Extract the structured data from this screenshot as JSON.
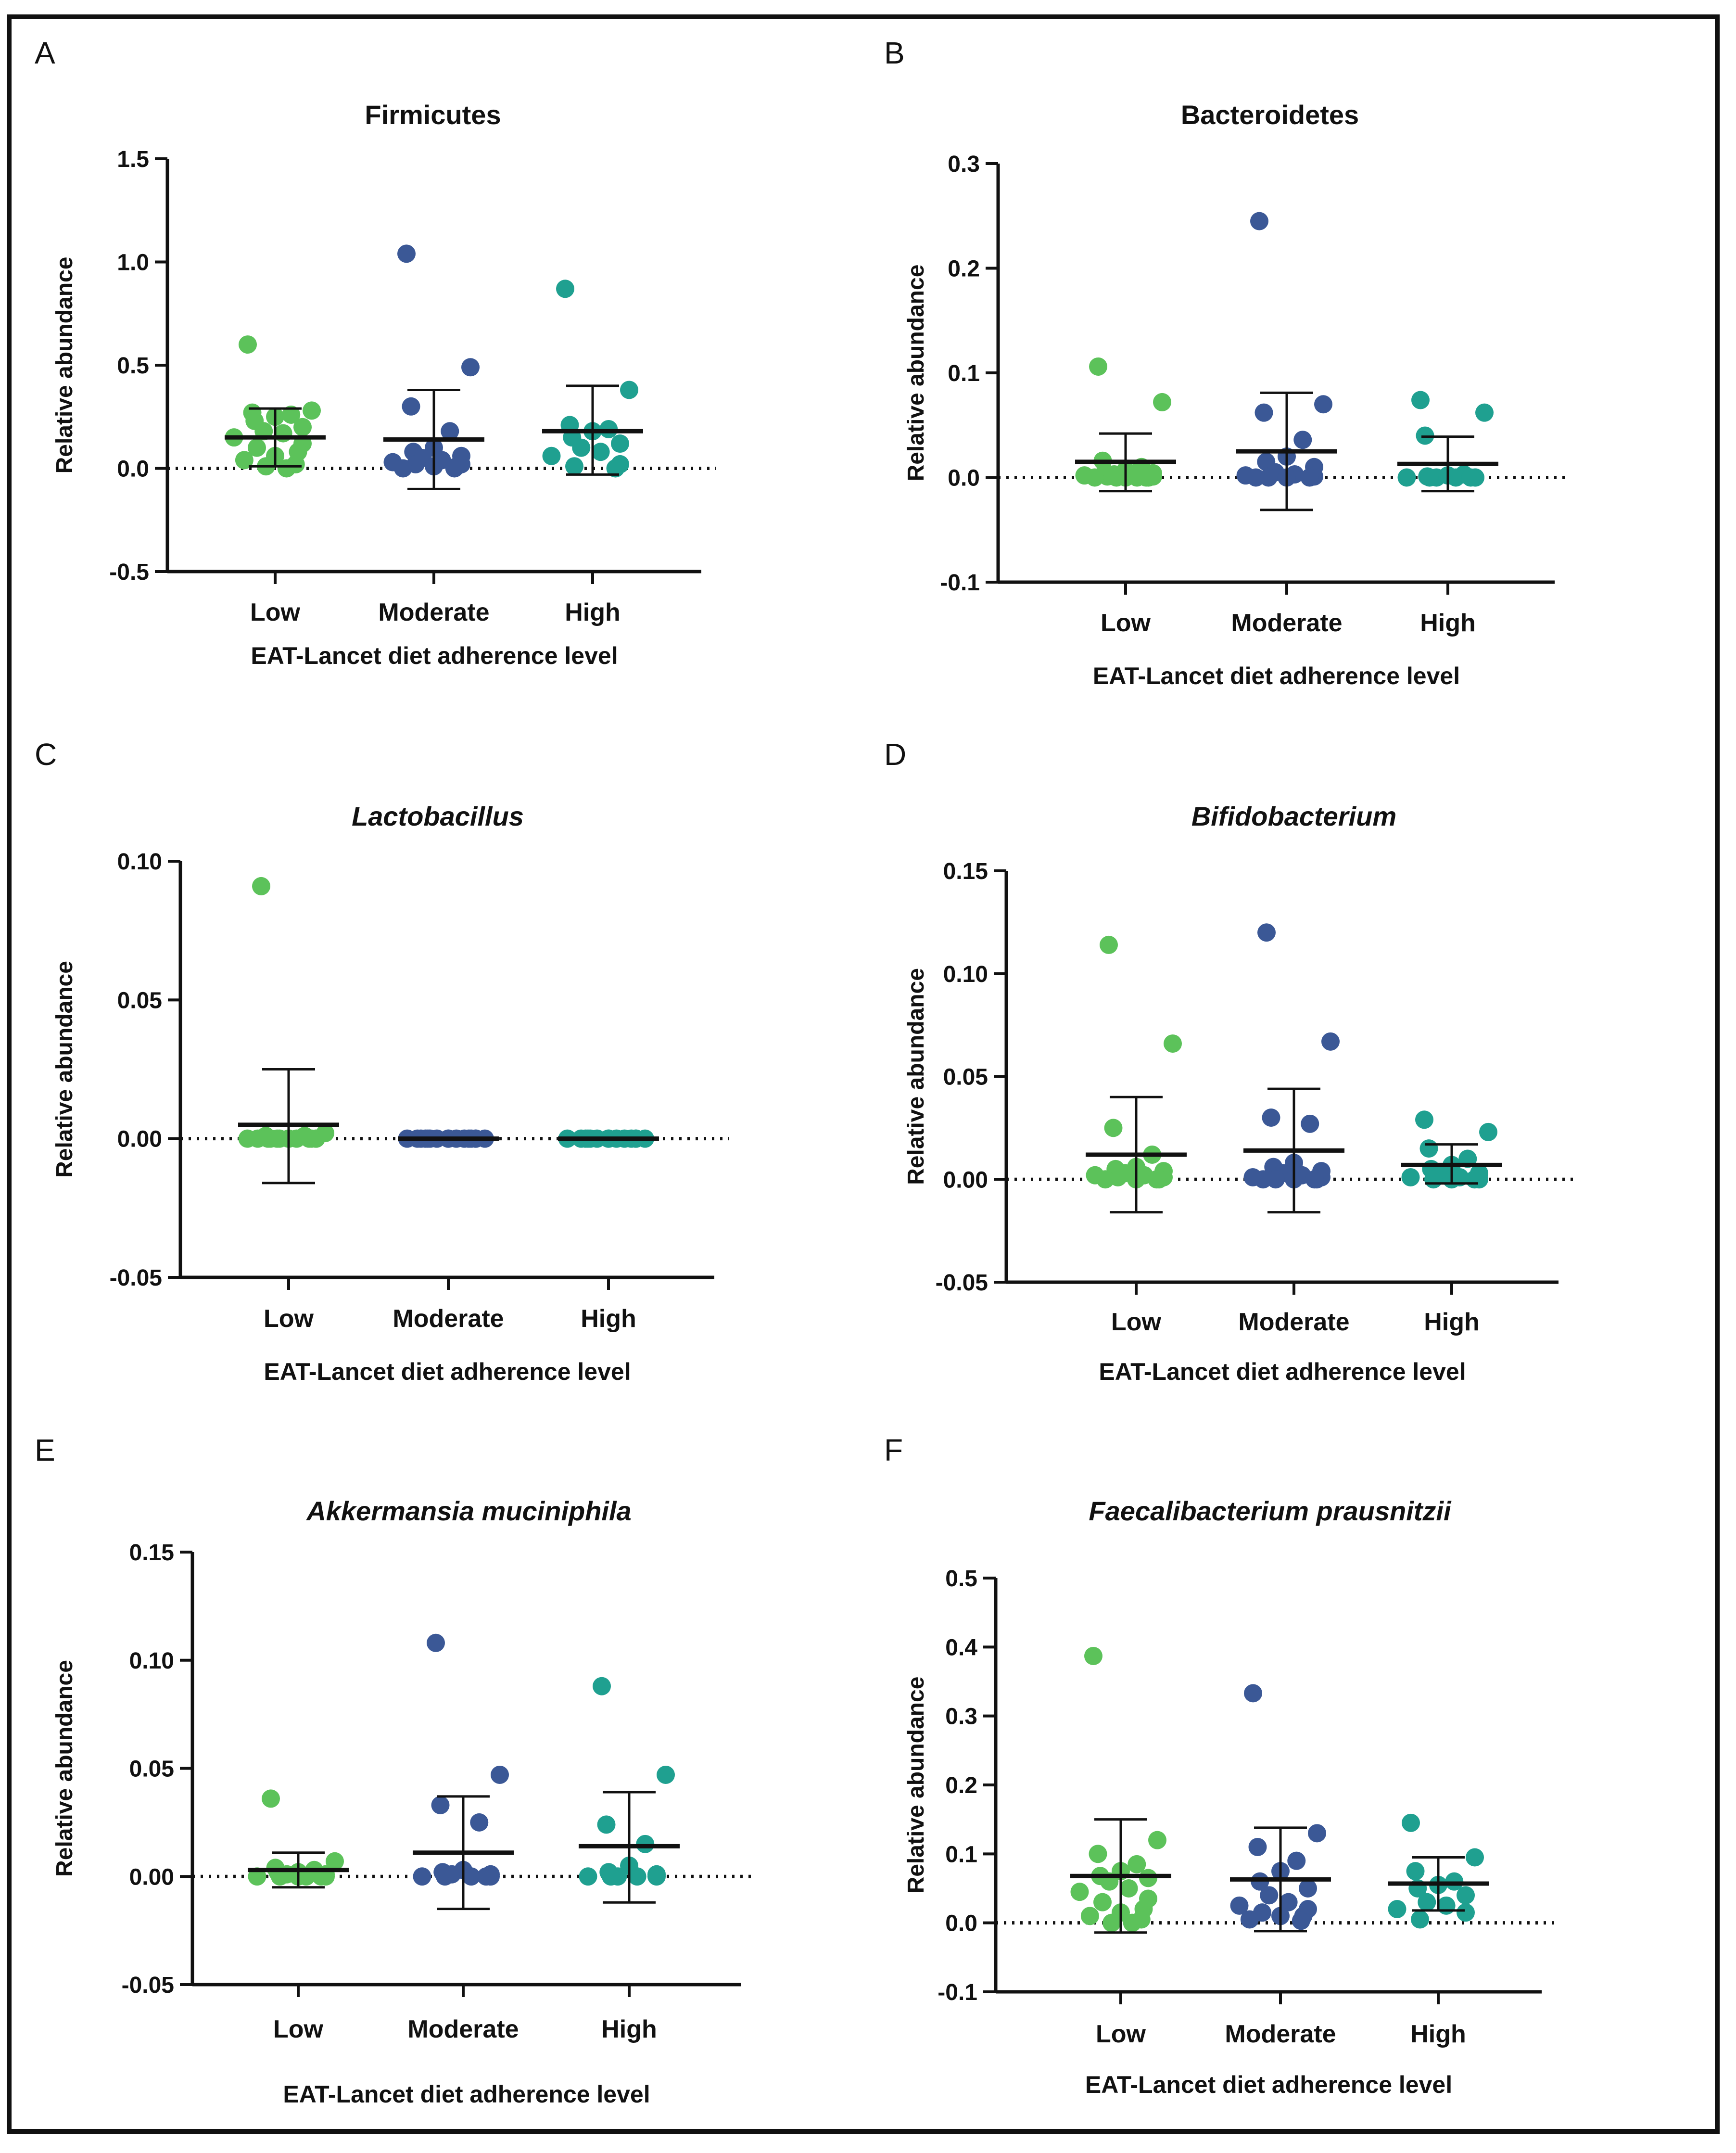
{
  "figure": {
    "colors": {
      "low": "#5cc25a",
      "moderate": "#3b5896",
      "high": "#1fa090",
      "axis": "#111111"
    },
    "groups": [
      "Low",
      "Moderate",
      "High"
    ]
  },
  "chart_data": [
    {
      "panel": "A",
      "type": "scatter",
      "title": "Firmicutes",
      "italic": false,
      "xlabel": "EAT-Lancet diet adherence level",
      "ylabel": "Relative abundance",
      "ylim": [
        -0.5,
        1.5
      ],
      "yticks": [
        -0.5,
        0.0,
        0.5,
        1.0,
        1.5
      ],
      "tick_labels": [
        "-0.5",
        "0.0",
        "0.5",
        "1.0",
        "1.5"
      ],
      "categories": [
        "Low",
        "Moderate",
        "High"
      ],
      "series": [
        {
          "name": "Low",
          "mean": 0.15,
          "sd_low": 0.01,
          "sd_high": 0.29,
          "points": [
            0.6,
            0.28,
            0.27,
            0.26,
            0.25,
            0.23,
            0.2,
            0.18,
            0.17,
            0.15,
            0.12,
            0.1,
            0.08,
            0.06,
            0.04,
            0.02,
            0.01,
            0.0
          ]
        },
        {
          "name": "Moderate",
          "mean": 0.14,
          "sd_low": -0.1,
          "sd_high": 0.38,
          "points": [
            1.04,
            0.49,
            0.3,
            0.18,
            0.1,
            0.08,
            0.06,
            0.05,
            0.04,
            0.03,
            0.02,
            0.02,
            0.01,
            0.01,
            0.0,
            0.0
          ]
        },
        {
          "name": "High",
          "mean": 0.18,
          "sd_low": -0.03,
          "sd_high": 0.4,
          "points": [
            0.87,
            0.38,
            0.21,
            0.19,
            0.18,
            0.15,
            0.12,
            0.1,
            0.08,
            0.06,
            0.02,
            0.01,
            0.0
          ]
        }
      ]
    },
    {
      "panel": "B",
      "type": "scatter",
      "title": "Bacteroidetes",
      "italic": false,
      "xlabel": "EAT-Lancet diet adherence level",
      "ylabel": "Relative abundance",
      "ylim": [
        -0.1,
        0.3
      ],
      "yticks": [
        -0.1,
        0.0,
        0.1,
        0.2,
        0.3
      ],
      "tick_labels": [
        "-0.1",
        "0.0",
        "0.1",
        "0.2",
        "0.3"
      ],
      "categories": [
        "Low",
        "Moderate",
        "High"
      ],
      "series": [
        {
          "name": "Low",
          "mean": 0.015,
          "sd_low": -0.013,
          "sd_high": 0.042,
          "points": [
            0.106,
            0.072,
            0.016,
            0.01,
            0.007,
            0.005,
            0.004,
            0.003,
            0.002,
            0.002,
            0.001,
            0.001,
            0.0,
            0.0,
            0.0,
            0.0,
            0.0,
            0.0
          ]
        },
        {
          "name": "Moderate",
          "mean": 0.025,
          "sd_low": -0.031,
          "sd_high": 0.081,
          "points": [
            0.245,
            0.07,
            0.062,
            0.036,
            0.02,
            0.015,
            0.01,
            0.005,
            0.003,
            0.002,
            0.001,
            0.0,
            0.0,
            0.0,
            0.0
          ]
        },
        {
          "name": "High",
          "mean": 0.013,
          "sd_low": -0.013,
          "sd_high": 0.039,
          "points": [
            0.074,
            0.062,
            0.04,
            0.003,
            0.002,
            0.001,
            0.0,
            0.0,
            0.0,
            0.0,
            0.0,
            0.0,
            0.0
          ]
        }
      ]
    },
    {
      "panel": "C",
      "type": "scatter",
      "title": "Lactobacillus",
      "italic": true,
      "xlabel": "EAT-Lancet diet adherence level",
      "ylabel": "Relative abundance",
      "ylim": [
        -0.05,
        0.1
      ],
      "yticks": [
        -0.05,
        0.0,
        0.05,
        0.1
      ],
      "tick_labels": [
        "-0.05",
        "0.00",
        "0.05",
        "0.10"
      ],
      "categories": [
        "Low",
        "Moderate",
        "High"
      ],
      "series": [
        {
          "name": "Low",
          "mean": 0.005,
          "sd_low": -0.016,
          "sd_high": 0.025,
          "points": [
            0.091,
            0.002,
            0.001,
            0.001,
            0.0,
            0.0,
            0.0,
            0.0,
            0.0,
            0.0,
            0.0,
            0.0,
            0.0,
            0.0,
            0.0,
            0.0,
            0.0
          ]
        },
        {
          "name": "Moderate",
          "mean": 0.0,
          "sd_low": 0.0,
          "sd_high": 0.0,
          "points": [
            0.0,
            0.0,
            0.0,
            0.0,
            0.0,
            0.0,
            0.0,
            0.0,
            0.0,
            0.0,
            0.0,
            0.0,
            0.0,
            0.0,
            0.0,
            0.0
          ]
        },
        {
          "name": "High",
          "mean": 0.0,
          "sd_low": 0.0,
          "sd_high": 0.0,
          "points": [
            0.0,
            0.0,
            0.0,
            0.0,
            0.0,
            0.0,
            0.0,
            0.0,
            0.0,
            0.0,
            0.0,
            0.0,
            0.0,
            0.0
          ]
        }
      ]
    },
    {
      "panel": "D",
      "type": "scatter",
      "title": "Bifidobacterium",
      "italic": true,
      "xlabel": "EAT-Lancet diet adherence level",
      "ylabel": "Relative abundance",
      "ylim": [
        -0.05,
        0.15
      ],
      "yticks": [
        -0.05,
        0.0,
        0.05,
        0.1,
        0.15
      ],
      "tick_labels": [
        "-0.05",
        "0.00",
        "0.05",
        "0.10",
        "0.15"
      ],
      "categories": [
        "Low",
        "Moderate",
        "High"
      ],
      "series": [
        {
          "name": "Low",
          "mean": 0.012,
          "sd_low": -0.016,
          "sd_high": 0.04,
          "points": [
            0.114,
            0.066,
            0.025,
            0.012,
            0.006,
            0.005,
            0.004,
            0.003,
            0.002,
            0.002,
            0.001,
            0.001,
            0.0,
            0.0,
            0.0,
            0.0
          ]
        },
        {
          "name": "Moderate",
          "mean": 0.014,
          "sd_low": -0.016,
          "sd_high": 0.044,
          "points": [
            0.12,
            0.067,
            0.03,
            0.027,
            0.008,
            0.006,
            0.004,
            0.003,
            0.002,
            0.001,
            0.001,
            0.0,
            0.0,
            0.0,
            0.0,
            0.0
          ]
        },
        {
          "name": "High",
          "mean": 0.007,
          "sd_low": -0.002,
          "sd_high": 0.017,
          "points": [
            0.029,
            0.023,
            0.015,
            0.01,
            0.007,
            0.005,
            0.003,
            0.002,
            0.001,
            0.001,
            0.0,
            0.0,
            0.0,
            0.0
          ]
        }
      ]
    },
    {
      "panel": "E",
      "type": "scatter",
      "title": "Akkermansia muciniphila",
      "italic": true,
      "xlabel": "EAT-Lancet diet adherence level",
      "ylabel": "Relative abundance",
      "ylim": [
        -0.05,
        0.15
      ],
      "yticks": [
        -0.05,
        0.0,
        0.05,
        0.1,
        0.15
      ],
      "tick_labels": [
        "-0.05",
        "0.00",
        "0.05",
        "0.10",
        "0.15"
      ],
      "categories": [
        "Low",
        "Moderate",
        "High"
      ],
      "series": [
        {
          "name": "Low",
          "mean": 0.003,
          "sd_low": -0.005,
          "sd_high": 0.011,
          "points": [
            0.036,
            0.007,
            0.004,
            0.003,
            0.002,
            0.002,
            0.001,
            0.001,
            0.0,
            0.0,
            0.0,
            0.0,
            0.0,
            0.0
          ]
        },
        {
          "name": "Moderate",
          "mean": 0.011,
          "sd_low": -0.015,
          "sd_high": 0.037,
          "points": [
            0.108,
            0.047,
            0.033,
            0.025,
            0.003,
            0.002,
            0.001,
            0.001,
            0.0,
            0.0,
            0.0,
            0.0,
            0.0
          ]
        },
        {
          "name": "High",
          "mean": 0.014,
          "sd_low": -0.012,
          "sd_high": 0.039,
          "points": [
            0.088,
            0.047,
            0.024,
            0.015,
            0.005,
            0.002,
            0.001,
            0.0,
            0.0,
            0.0,
            0.0,
            0.0
          ]
        }
      ]
    },
    {
      "panel": "F",
      "type": "scatter",
      "title": "Faecalibacterium prausnitzii",
      "italic": true,
      "xlabel": "EAT-Lancet diet adherence level",
      "ylabel": "Relative abundance",
      "ylim": [
        -0.1,
        0.5
      ],
      "yticks": [
        -0.1,
        0.0,
        0.1,
        0.2,
        0.3,
        0.4,
        0.5
      ],
      "tick_labels": [
        "-0.1",
        "0.0",
        "0.1",
        "0.2",
        "0.3",
        "0.4",
        "0.5"
      ],
      "categories": [
        "Low",
        "Moderate",
        "High"
      ],
      "series": [
        {
          "name": "Low",
          "mean": 0.068,
          "sd_low": -0.014,
          "sd_high": 0.15,
          "points": [
            0.387,
            0.12,
            0.1,
            0.085,
            0.075,
            0.068,
            0.065,
            0.06,
            0.05,
            0.045,
            0.035,
            0.03,
            0.02,
            0.015,
            0.01,
            0.005,
            0.0,
            0.0
          ]
        },
        {
          "name": "Moderate",
          "mean": 0.063,
          "sd_low": -0.012,
          "sd_high": 0.138,
          "points": [
            0.333,
            0.13,
            0.11,
            0.09,
            0.075,
            0.06,
            0.05,
            0.04,
            0.03,
            0.025,
            0.02,
            0.015,
            0.01,
            0.01,
            0.005,
            0.003
          ]
        },
        {
          "name": "High",
          "mean": 0.057,
          "sd_low": 0.018,
          "sd_high": 0.095,
          "points": [
            0.145,
            0.095,
            0.075,
            0.06,
            0.055,
            0.05,
            0.04,
            0.03,
            0.025,
            0.02,
            0.015,
            0.005
          ]
        }
      ]
    }
  ]
}
